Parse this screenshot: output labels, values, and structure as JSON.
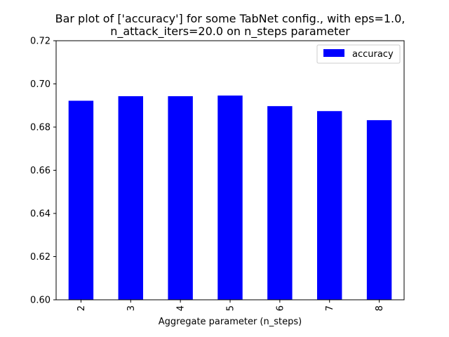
{
  "chart_data": {
    "type": "bar",
    "title_line1": "Bar plot of ['accuracy'] for some TabNet config., with eps=1.0,",
    "title_line2": "n_attack_iters=20.0 on n_steps parameter",
    "xlabel": "Aggregate parameter (n_steps)",
    "ylabel": "",
    "categories": [
      "2",
      "3",
      "4",
      "5",
      "6",
      "7",
      "8"
    ],
    "series": [
      {
        "name": "accuracy",
        "values": [
          0.6922,
          0.6943,
          0.6943,
          0.6946,
          0.6897,
          0.6874,
          0.6832
        ],
        "color": "#0000ff"
      }
    ],
    "ylim": [
      0.6,
      0.72
    ],
    "yticks": [
      "0.60",
      "0.62",
      "0.64",
      "0.66",
      "0.68",
      "0.70",
      "0.72"
    ],
    "grid": false,
    "legend": "top-right"
  }
}
